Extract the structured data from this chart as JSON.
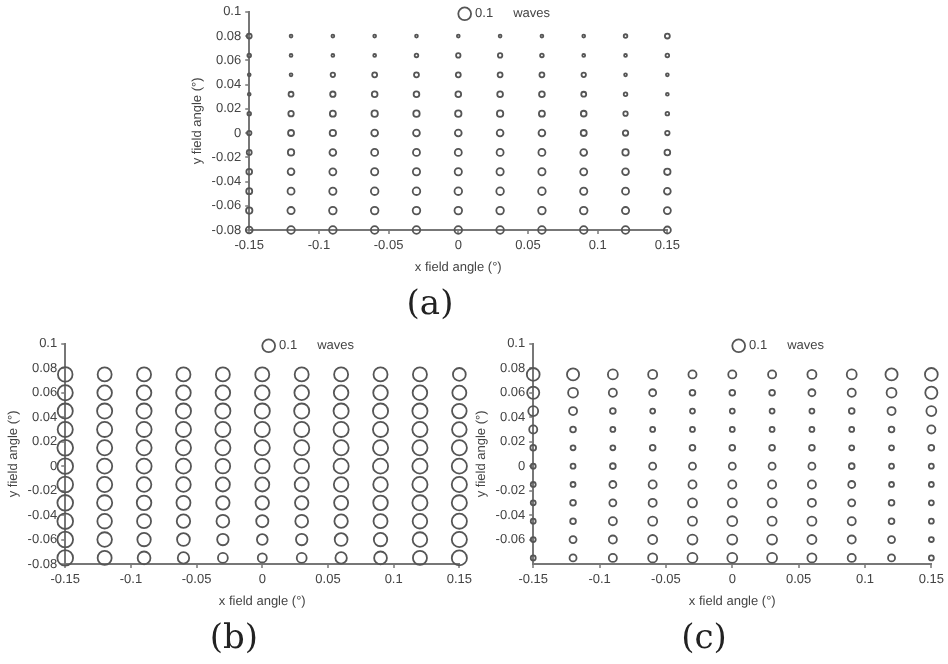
{
  "chart_data": [
    {
      "type": "bubble",
      "title": "(a)",
      "xlabel": "x field angle (°)",
      "ylabel": "y field angle (°)",
      "legend_title": "waves",
      "size_legend": [
        0.1
      ],
      "marker": "circle",
      "grid": false,
      "xlim": [
        -0.15,
        0.15
      ],
      "xticks": [
        -0.15,
        -0.1,
        -0.05,
        0,
        0.05,
        0.1,
        0.15
      ],
      "ylim": [
        -0.08,
        0.1
      ],
      "yticks": [
        -0.08,
        -0.06,
        -0.04,
        -0.02,
        0,
        0.02,
        0.04,
        0.06,
        0.08,
        0.1
      ],
      "x": [
        -0.15,
        -0.12,
        -0.09,
        -0.06,
        -0.03,
        0,
        0.03,
        0.06,
        0.09,
        0.12,
        0.15
      ],
      "series": [
        {
          "color": "#555555",
          "values": [
            0.08,
            0.08,
            0.08,
            0.08,
            0.08,
            0.08,
            0.08,
            0.08,
            0.08,
            0.08,
            0.08
          ],
          "sizes": [
            0.015,
            0.005,
            0.005,
            0.005,
            0.005,
            0.005,
            0.005,
            0.005,
            0.005,
            0.008,
            0.015
          ]
        },
        {
          "color": "#555555",
          "values": [
            0.064,
            0.064,
            0.064,
            0.064,
            0.064,
            0.064,
            0.064,
            0.064,
            0.064,
            0.064,
            0.064
          ],
          "sizes": [
            0.008,
            0.005,
            0.005,
            0.005,
            0.008,
            0.012,
            0.012,
            0.008,
            0.005,
            0.005,
            0.008
          ]
        },
        {
          "color": "#555555",
          "values": [
            0.048,
            0.048,
            0.048,
            0.048,
            0.048,
            0.048,
            0.048,
            0.048,
            0.048,
            0.048,
            0.048
          ],
          "sizes": [
            0.005,
            0.005,
            0.012,
            0.015,
            0.015,
            0.015,
            0.015,
            0.015,
            0.012,
            0.005,
            0.005
          ]
        },
        {
          "color": "#555555",
          "values": [
            0.032,
            0.032,
            0.032,
            0.032,
            0.032,
            0.032,
            0.032,
            0.032,
            0.032,
            0.032,
            0.032
          ],
          "sizes": [
            0.005,
            0.015,
            0.018,
            0.02,
            0.02,
            0.02,
            0.02,
            0.02,
            0.015,
            0.008,
            0.005
          ]
        },
        {
          "color": "#555555",
          "values": [
            0.016,
            0.016,
            0.016,
            0.016,
            0.016,
            0.016,
            0.016,
            0.016,
            0.016,
            0.016,
            0.016
          ],
          "sizes": [
            0.008,
            0.018,
            0.022,
            0.025,
            0.025,
            0.025,
            0.025,
            0.022,
            0.02,
            0.012,
            0.008
          ]
        },
        {
          "color": "#555555",
          "values": [
            0,
            0,
            0,
            0,
            0,
            0,
            0,
            0,
            0,
            0,
            0
          ],
          "sizes": [
            0.012,
            0.022,
            0.025,
            0.028,
            0.028,
            0.028,
            0.028,
            0.028,
            0.022,
            0.018,
            0.012
          ]
        },
        {
          "color": "#555555",
          "values": [
            -0.016,
            -0.016,
            -0.016,
            -0.016,
            -0.016,
            -0.016,
            -0.016,
            -0.016,
            -0.016,
            -0.016,
            -0.016
          ],
          "sizes": [
            0.015,
            0.025,
            0.028,
            0.03,
            0.03,
            0.03,
            0.03,
            0.03,
            0.028,
            0.025,
            0.02
          ]
        },
        {
          "color": "#555555",
          "values": [
            -0.032,
            -0.032,
            -0.032,
            -0.032,
            -0.032,
            -0.032,
            -0.032,
            -0.032,
            -0.032,
            -0.032,
            -0.032
          ],
          "sizes": [
            0.02,
            0.028,
            0.03,
            0.032,
            0.032,
            0.032,
            0.032,
            0.032,
            0.03,
            0.028,
            0.025
          ]
        },
        {
          "color": "#555555",
          "values": [
            -0.048,
            -0.048,
            -0.048,
            -0.048,
            -0.048,
            -0.048,
            -0.048,
            -0.048,
            -0.048,
            -0.048,
            -0.048
          ],
          "sizes": [
            0.022,
            0.03,
            0.032,
            0.035,
            0.035,
            0.035,
            0.035,
            0.035,
            0.032,
            0.03,
            0.028
          ]
        },
        {
          "color": "#555555",
          "values": [
            -0.064,
            -0.064,
            -0.064,
            -0.064,
            -0.064,
            -0.064,
            -0.064,
            -0.064,
            -0.064,
            -0.064,
            -0.064
          ],
          "sizes": [
            0.025,
            0.032,
            0.035,
            0.035,
            0.035,
            0.035,
            0.035,
            0.035,
            0.035,
            0.032,
            0.03
          ]
        },
        {
          "color": "#555555",
          "values": [
            -0.08,
            -0.08,
            -0.08,
            -0.08,
            -0.08,
            -0.08,
            -0.08,
            -0.08,
            -0.08,
            -0.08,
            -0.08
          ],
          "sizes": [
            0.028,
            0.035,
            0.035,
            0.035,
            0.035,
            0.035,
            0.035,
            0.035,
            0.035,
            0.035,
            0.03
          ]
        }
      ]
    },
    {
      "type": "bubble",
      "title": "(b)",
      "xlabel": "x field angle (°)",
      "ylabel": "y field angle (°)",
      "legend_title": "waves",
      "size_legend": [
        0.1
      ],
      "marker": "circle",
      "grid": false,
      "xlim": [
        -0.15,
        0.15
      ],
      "xticks": [
        -0.15,
        -0.1,
        -0.05,
        0,
        0.05,
        0.1,
        0.15
      ],
      "ylim": [
        -0.08,
        0.1
      ],
      "yticks": [
        -0.08,
        -0.06,
        -0.04,
        -0.02,
        0,
        0.02,
        0.04,
        0.06,
        0.08,
        0.1
      ],
      "x": [
        -0.15,
        -0.12,
        -0.09,
        -0.06,
        -0.03,
        0,
        0.03,
        0.06,
        0.09,
        0.12,
        0.15
      ],
      "series": [
        {
          "color": "#555555",
          "values": [
            0.075,
            0.075,
            0.075,
            0.075,
            0.075,
            0.075,
            0.075,
            0.075,
            0.075,
            0.075,
            0.075
          ],
          "sizes": [
            0.13,
            0.12,
            0.12,
            0.12,
            0.12,
            0.12,
            0.12,
            0.12,
            0.12,
            0.12,
            0.1
          ]
        },
        {
          "color": "#555555",
          "values": [
            0.06,
            0.06,
            0.06,
            0.06,
            0.06,
            0.06,
            0.06,
            0.06,
            0.06,
            0.06,
            0.06
          ],
          "sizes": [
            0.14,
            0.13,
            0.13,
            0.13,
            0.13,
            0.13,
            0.13,
            0.13,
            0.13,
            0.13,
            0.12
          ]
        },
        {
          "color": "#555555",
          "values": [
            0.045,
            0.045,
            0.045,
            0.045,
            0.045,
            0.045,
            0.045,
            0.045,
            0.045,
            0.045,
            0.045
          ],
          "sizes": [
            0.14,
            0.14,
            0.14,
            0.14,
            0.14,
            0.14,
            0.14,
            0.14,
            0.14,
            0.14,
            0.13
          ]
        },
        {
          "color": "#555555",
          "values": [
            0.03,
            0.03,
            0.03,
            0.03,
            0.03,
            0.03,
            0.03,
            0.03,
            0.03,
            0.03,
            0.03
          ],
          "sizes": [
            0.14,
            0.14,
            0.14,
            0.14,
            0.14,
            0.14,
            0.14,
            0.14,
            0.14,
            0.14,
            0.13
          ]
        },
        {
          "color": "#555555",
          "values": [
            0.015,
            0.015,
            0.015,
            0.015,
            0.015,
            0.015,
            0.015,
            0.015,
            0.015,
            0.015,
            0.015
          ],
          "sizes": [
            0.15,
            0.14,
            0.14,
            0.14,
            0.14,
            0.14,
            0.14,
            0.14,
            0.14,
            0.14,
            0.14
          ]
        },
        {
          "color": "#555555",
          "values": [
            0,
            0,
            0,
            0,
            0,
            0,
            0,
            0,
            0,
            0,
            0
          ],
          "sizes": [
            0.15,
            0.14,
            0.14,
            0.14,
            0.13,
            0.13,
            0.13,
            0.14,
            0.14,
            0.14,
            0.14
          ]
        },
        {
          "color": "#555555",
          "values": [
            -0.015,
            -0.015,
            -0.015,
            -0.015,
            -0.015,
            -0.015,
            -0.015,
            -0.015,
            -0.015,
            -0.015,
            -0.015
          ],
          "sizes": [
            0.15,
            0.14,
            0.13,
            0.13,
            0.12,
            0.12,
            0.12,
            0.13,
            0.13,
            0.14,
            0.14
          ]
        },
        {
          "color": "#555555",
          "values": [
            -0.03,
            -0.03,
            -0.03,
            -0.03,
            -0.03,
            -0.03,
            -0.03,
            -0.03,
            -0.03,
            -0.03,
            -0.03
          ],
          "sizes": [
            0.15,
            0.14,
            0.13,
            0.12,
            0.11,
            0.11,
            0.11,
            0.12,
            0.13,
            0.14,
            0.14
          ]
        },
        {
          "color": "#555555",
          "values": [
            -0.045,
            -0.045,
            -0.045,
            -0.045,
            -0.045,
            -0.045,
            -0.045,
            -0.045,
            -0.045,
            -0.045,
            -0.045
          ],
          "sizes": [
            0.15,
            0.13,
            0.12,
            0.11,
            0.1,
            0.09,
            0.1,
            0.11,
            0.12,
            0.13,
            0.14
          ]
        },
        {
          "color": "#555555",
          "values": [
            -0.06,
            -0.06,
            -0.06,
            -0.06,
            -0.06,
            -0.06,
            -0.06,
            -0.06,
            -0.06,
            -0.06,
            -0.06
          ],
          "sizes": [
            0.15,
            0.13,
            0.11,
            0.1,
            0.08,
            0.07,
            0.08,
            0.1,
            0.11,
            0.13,
            0.14
          ]
        },
        {
          "color": "#555555",
          "values": [
            -0.075,
            -0.075,
            -0.075,
            -0.075,
            -0.075,
            -0.075,
            -0.075,
            -0.075,
            -0.075,
            -0.075,
            -0.075
          ],
          "sizes": [
            0.15,
            0.12,
            0.1,
            0.08,
            0.06,
            0.05,
            0.06,
            0.08,
            0.1,
            0.12,
            0.14
          ]
        }
      ]
    },
    {
      "type": "bubble",
      "title": "(c)",
      "xlabel": "x field angle (°)",
      "ylabel": "y field angle (°)",
      "legend_title": "waves",
      "size_legend": [
        0.1
      ],
      "marker": "circle",
      "grid": false,
      "xlim": [
        -0.15,
        0.15
      ],
      "xticks": [
        -0.15,
        -0.1,
        -0.05,
        0,
        0.05,
        0.1,
        0.15
      ],
      "ylim": [
        -0.08,
        0.1
      ],
      "yticks": [
        -0.06,
        -0.04,
        -0.02,
        0,
        0.02,
        0.04,
        0.06,
        0.08,
        0.1
      ],
      "x": [
        -0.15,
        -0.12,
        -0.09,
        -0.06,
        -0.03,
        0,
        0.03,
        0.06,
        0.09,
        0.12,
        0.15
      ],
      "series": [
        {
          "color": "#555555",
          "values": [
            0.075,
            0.075,
            0.075,
            0.075,
            0.075,
            0.075,
            0.075,
            0.075,
            0.075,
            0.075,
            0.075
          ],
          "sizes": [
            0.1,
            0.09,
            0.06,
            0.05,
            0.04,
            0.04,
            0.04,
            0.05,
            0.06,
            0.09,
            0.1
          ]
        },
        {
          "color": "#555555",
          "values": [
            0.06,
            0.06,
            0.06,
            0.06,
            0.06,
            0.06,
            0.06,
            0.06,
            0.06,
            0.06,
            0.06
          ],
          "sizes": [
            0.09,
            0.06,
            0.04,
            0.03,
            0.02,
            0.02,
            0.02,
            0.03,
            0.04,
            0.06,
            0.09
          ]
        },
        {
          "color": "#555555",
          "values": [
            0.045,
            0.045,
            0.045,
            0.045,
            0.045,
            0.045,
            0.045,
            0.045,
            0.045,
            0.045,
            0.045
          ],
          "sizes": [
            0.06,
            0.04,
            0.02,
            0.015,
            0.015,
            0.015,
            0.015,
            0.015,
            0.02,
            0.04,
            0.06
          ]
        },
        {
          "color": "#555555",
          "values": [
            0.03,
            0.03,
            0.03,
            0.03,
            0.03,
            0.03,
            0.03,
            0.03,
            0.03,
            0.03,
            0.03
          ],
          "sizes": [
            0.04,
            0.02,
            0.015,
            0.015,
            0.015,
            0.015,
            0.015,
            0.015,
            0.015,
            0.02,
            0.04
          ]
        },
        {
          "color": "#555555",
          "values": [
            0.015,
            0.015,
            0.015,
            0.015,
            0.015,
            0.015,
            0.015,
            0.015,
            0.015,
            0.015,
            0.015
          ],
          "sizes": [
            0.02,
            0.015,
            0.015,
            0.02,
            0.02,
            0.02,
            0.02,
            0.02,
            0.015,
            0.015,
            0.02
          ]
        },
        {
          "color": "#555555",
          "values": [
            0,
            0,
            0,
            0,
            0,
            0,
            0,
            0,
            0,
            0,
            0
          ],
          "sizes": [
            0.015,
            0.015,
            0.02,
            0.03,
            0.03,
            0.03,
            0.03,
            0.03,
            0.02,
            0.015,
            0.015
          ]
        },
        {
          "color": "#555555",
          "values": [
            -0.015,
            -0.015,
            -0.015,
            -0.015,
            -0.015,
            -0.015,
            -0.015,
            -0.015,
            -0.015,
            -0.015,
            -0.015
          ],
          "sizes": [
            0.015,
            0.015,
            0.03,
            0.04,
            0.04,
            0.04,
            0.04,
            0.04,
            0.03,
            0.015,
            0.015
          ]
        },
        {
          "color": "#555555",
          "values": [
            -0.03,
            -0.03,
            -0.03,
            -0.03,
            -0.03,
            -0.03,
            -0.03,
            -0.03,
            -0.03,
            -0.03,
            -0.03
          ],
          "sizes": [
            0.015,
            0.02,
            0.03,
            0.04,
            0.05,
            0.05,
            0.05,
            0.04,
            0.03,
            0.02,
            0.015
          ]
        },
        {
          "color": "#555555",
          "values": [
            -0.045,
            -0.045,
            -0.045,
            -0.045,
            -0.045,
            -0.045,
            -0.045,
            -0.045,
            -0.045,
            -0.045,
            -0.045
          ],
          "sizes": [
            0.015,
            0.02,
            0.04,
            0.05,
            0.05,
            0.06,
            0.05,
            0.05,
            0.04,
            0.02,
            0.015
          ]
        },
        {
          "color": "#555555",
          "values": [
            -0.06,
            -0.06,
            -0.06,
            -0.06,
            -0.06,
            -0.06,
            -0.06,
            -0.06,
            -0.06,
            -0.06,
            -0.06
          ],
          "sizes": [
            0.015,
            0.03,
            0.04,
            0.05,
            0.06,
            0.06,
            0.06,
            0.05,
            0.04,
            0.03,
            0.015
          ]
        },
        {
          "color": "#555555",
          "values": [
            -0.075,
            -0.075,
            -0.075,
            -0.075,
            -0.075,
            -0.075,
            -0.075,
            -0.075,
            -0.075,
            -0.075,
            -0.075
          ],
          "sizes": [
            0.015,
            0.03,
            0.04,
            0.05,
            0.06,
            0.06,
            0.06,
            0.05,
            0.04,
            0.03,
            0.015
          ]
        }
      ]
    }
  ]
}
